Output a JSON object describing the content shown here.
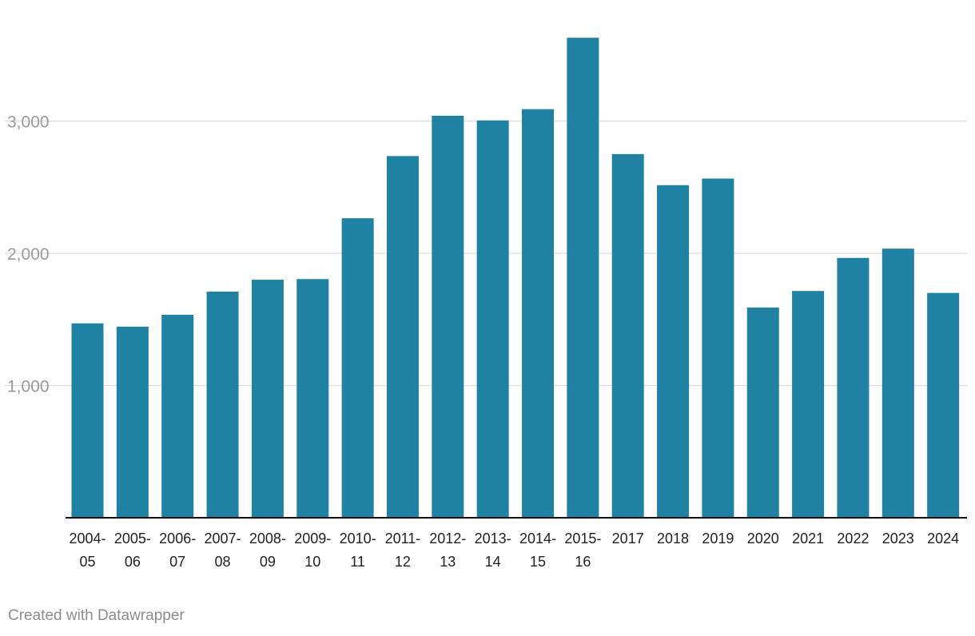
{
  "chart_data": {
    "type": "bar",
    "title": "",
    "xlabel": "",
    "ylabel": "",
    "ylim": [
      0,
      3700
    ],
    "yticks": [
      1000,
      2000,
      3000
    ],
    "ytick_labels": [
      "1,000",
      "2,000",
      "3,000"
    ],
    "grid": true,
    "categories": [
      [
        "2004-",
        "05"
      ],
      [
        "2005-",
        "06"
      ],
      [
        "2006-",
        "07"
      ],
      [
        "2007-",
        "08"
      ],
      [
        "2008-",
        "09"
      ],
      [
        "2009-",
        "10"
      ],
      [
        "2010-",
        "11"
      ],
      [
        "2011-",
        "12"
      ],
      [
        "2012-",
        "13"
      ],
      [
        "2013-",
        "14"
      ],
      [
        "2014-",
        "15"
      ],
      [
        "2015-",
        "16"
      ],
      [
        "2017"
      ],
      [
        "2018"
      ],
      [
        "2019"
      ],
      [
        "2020"
      ],
      [
        "2021"
      ],
      [
        "2022"
      ],
      [
        "2023"
      ],
      [
        "2024"
      ]
    ],
    "values": [
      1470,
      1445,
      1535,
      1710,
      1800,
      1805,
      2265,
      2735,
      3040,
      3005,
      3090,
      3630,
      2750,
      2515,
      2565,
      1590,
      1715,
      1965,
      2035,
      1700
    ],
    "bar_color": "#1f82a3"
  },
  "footer": {
    "credit": "Created with Datawrapper"
  }
}
